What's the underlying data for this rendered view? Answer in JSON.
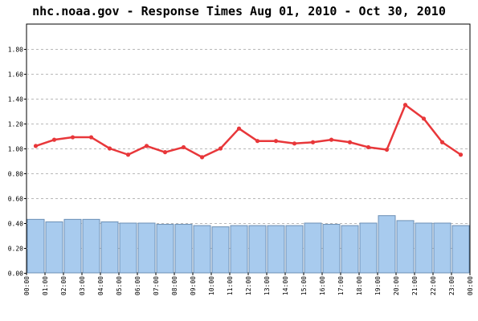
{
  "chart_data": {
    "type": "bar",
    "title": "nhc.noaa.gov - Response Times Aug 01, 2010 - Oct 30, 2010",
    "xlabel": "",
    "ylabel": "",
    "ylim": [
      0,
      2.0
    ],
    "yticks": [
      "0.00",
      "0.20",
      "0.40",
      "0.60",
      "0.80",
      "1.00",
      "1.20",
      "1.40",
      "1.60",
      "1.80"
    ],
    "ytick_values": [
      0,
      0.2,
      0.4,
      0.6,
      0.8,
      1.0,
      1.2,
      1.4,
      1.6,
      1.8
    ],
    "categories": [
      "00:00",
      "01:00",
      "02:00",
      "03:00",
      "04:00",
      "05:00",
      "06:00",
      "07:00",
      "08:00",
      "09:00",
      "10:00",
      "11:00",
      "12:00",
      "13:00",
      "14:00",
      "15:00",
      "16:00",
      "17:00",
      "18:00",
      "19:00",
      "20:00",
      "21:00",
      "22:00",
      "23:00"
    ],
    "x_tick_labels": [
      "00:00",
      "01:00",
      "02:00",
      "03:00",
      "04:00",
      "05:00",
      "06:00",
      "07:00",
      "08:00",
      "09:00",
      "10:00",
      "11:00",
      "12:00",
      "13:00",
      "14:00",
      "15:00",
      "16:00",
      "17:00",
      "18:00",
      "19:00",
      "20:00",
      "21:00",
      "22:00",
      "23:00",
      "00:00"
    ],
    "grid": "horizontal dashed",
    "legend": "none",
    "series": [
      {
        "kind": "bar",
        "color": "#a8cbee",
        "edge_color": "#6b8fb5",
        "values": [
          0.43,
          0.41,
          0.43,
          0.43,
          0.41,
          0.4,
          0.4,
          0.39,
          0.39,
          0.38,
          0.37,
          0.38,
          0.38,
          0.38,
          0.38,
          0.4,
          0.39,
          0.38,
          0.4,
          0.46,
          0.42,
          0.4,
          0.4,
          0.38
        ]
      },
      {
        "kind": "line",
        "color": "#e8373a",
        "values": [
          1.02,
          1.07,
          1.09,
          1.09,
          1.0,
          0.95,
          1.02,
          0.97,
          1.01,
          0.93,
          1.0,
          1.16,
          1.06,
          1.06,
          1.04,
          1.05,
          1.07,
          1.05,
          1.01,
          0.99,
          1.35,
          1.24,
          1.05,
          0.95
        ]
      }
    ]
  }
}
